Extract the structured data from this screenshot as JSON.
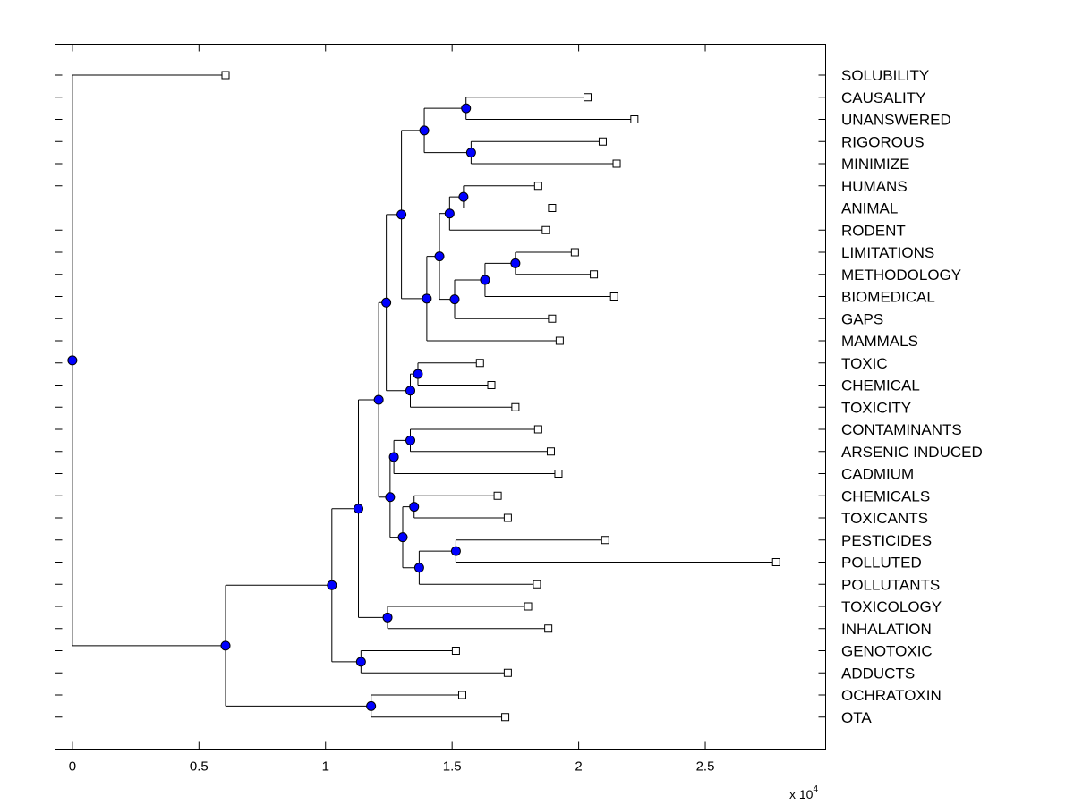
{
  "figure": {
    "type": "dendrogram",
    "x_multiplier": {
      "base": "x 10",
      "exponent": "4"
    },
    "xlim": [
      -0.0685,
      2.9754
    ],
    "x_ticks": [
      {
        "value": 0,
        "label": "0"
      },
      {
        "value": 0.5,
        "label": "0.5"
      },
      {
        "value": 1,
        "label": "1"
      },
      {
        "value": 1.5,
        "label": "1.5"
      },
      {
        "value": 2,
        "label": "2"
      },
      {
        "value": 2.5,
        "label": "2.5"
      }
    ],
    "colors": {
      "node_fill": "#0000ff",
      "line": "#000000",
      "leaf_fill": "#ffffff"
    }
  },
  "chart_data": {
    "type": "dendrogram",
    "title": "",
    "xlabel": "",
    "x_unit_multiplier": "x 10^4",
    "leaves": [
      {
        "name": "SOLUBILITY",
        "x": 0.605
      },
      {
        "name": "CAUSALITY",
        "x": 2.035
      },
      {
        "name": "UNANSWERED",
        "x": 2.22
      },
      {
        "name": "RIGOROUS",
        "x": 2.095
      },
      {
        "name": "MINIMIZE",
        "x": 2.15
      },
      {
        "name": "HUMANS",
        "x": 1.84
      },
      {
        "name": "ANIMAL",
        "x": 1.895
      },
      {
        "name": "RODENT",
        "x": 1.87
      },
      {
        "name": "LIMITATIONS",
        "x": 1.985
      },
      {
        "name": "METHODOLOGY",
        "x": 2.06
      },
      {
        "name": "BIOMEDICAL",
        "x": 2.14
      },
      {
        "name": "GAPS",
        "x": 1.895
      },
      {
        "name": "MAMMALS",
        "x": 1.925
      },
      {
        "name": "TOXIC",
        "x": 1.61
      },
      {
        "name": "CHEMICAL",
        "x": 1.655
      },
      {
        "name": "TOXICITY",
        "x": 1.75
      },
      {
        "name": "CONTAMINANTS",
        "x": 1.84
      },
      {
        "name": "ARSENIC INDUCED",
        "x": 1.89
      },
      {
        "name": "CADMIUM",
        "x": 1.92
      },
      {
        "name": "CHEMICALS",
        "x": 1.68
      },
      {
        "name": "TOXICANTS",
        "x": 1.72
      },
      {
        "name": "PESTICIDES",
        "x": 2.105
      },
      {
        "name": "POLLUTED",
        "x": 2.78
      },
      {
        "name": "POLLUTANTS",
        "x": 1.835
      },
      {
        "name": "TOXICOLOGY",
        "x": 1.8
      },
      {
        "name": "INHALATION",
        "x": 1.88
      },
      {
        "name": "GENOTOXIC",
        "x": 1.515
      },
      {
        "name": "ADDUCTS",
        "x": 1.72
      },
      {
        "name": "OCHRATOXIN",
        "x": 1.54
      },
      {
        "name": "OTA",
        "x": 1.71
      }
    ],
    "tree": {
      "x": 0.0,
      "children": [
        {
          "leaf": "SOLUBILITY"
        },
        {
          "x": 0.605,
          "children": [
            {
              "x": 1.025,
              "children": [
                {
                  "x": 1.13,
                  "children": [
                    {
                      "x": 1.21,
                      "children": [
                        {
                          "x": 1.24,
                          "children": [
                            {
                              "x": 1.3,
                              "children": [
                                {
                                  "x": 1.39,
                                  "children": [
                                    {
                                      "x": 1.555,
                                      "children": [
                                        {
                                          "leaf": "CAUSALITY"
                                        },
                                        {
                                          "leaf": "UNANSWERED"
                                        }
                                      ]
                                    },
                                    {
                                      "x": 1.575,
                                      "children": [
                                        {
                                          "leaf": "RIGOROUS"
                                        },
                                        {
                                          "leaf": "MINIMIZE"
                                        }
                                      ]
                                    }
                                  ]
                                },
                                {
                                  "x": 1.4,
                                  "children": [
                                    {
                                      "x": 1.45,
                                      "children": [
                                        {
                                          "x": 1.49,
                                          "children": [
                                            {
                                              "x": 1.545,
                                              "children": [
                                                {
                                                  "leaf": "HUMANS"
                                                },
                                                {
                                                  "leaf": "ANIMAL"
                                                }
                                              ]
                                            },
                                            {
                                              "leaf": "RODENT"
                                            }
                                          ]
                                        },
                                        {
                                          "x": 1.51,
                                          "children": [
                                            {
                                              "x": 1.63,
                                              "children": [
                                                {
                                                  "x": 1.75,
                                                  "children": [
                                                    {
                                                      "leaf": "LIMITATIONS"
                                                    },
                                                    {
                                                      "leaf": "METHODOLOGY"
                                                    }
                                                  ]
                                                },
                                                {
                                                  "leaf": "BIOMEDICAL"
                                                }
                                              ]
                                            },
                                            {
                                              "leaf": "GAPS"
                                            }
                                          ]
                                        }
                                      ]
                                    },
                                    {
                                      "leaf": "MAMMALS"
                                    }
                                  ]
                                }
                              ]
                            },
                            {
                              "x": 1.335,
                              "children": [
                                {
                                  "x": 1.365,
                                  "children": [
                                    {
                                      "leaf": "TOXIC"
                                    },
                                    {
                                      "leaf": "CHEMICAL"
                                    }
                                  ]
                                },
                                {
                                  "leaf": "TOXICITY"
                                }
                              ]
                            }
                          ]
                        },
                        {
                          "x": 1.255,
                          "children": [
                            {
                              "x": 1.27,
                              "children": [
                                {
                                  "x": 1.335,
                                  "children": [
                                    {
                                      "leaf": "CONTAMINANTS"
                                    },
                                    {
                                      "leaf": "ARSENIC INDUCED"
                                    }
                                  ]
                                },
                                {
                                  "leaf": "CADMIUM"
                                }
                              ]
                            },
                            {
                              "x": 1.305,
                              "children": [
                                {
                                  "x": 1.35,
                                  "children": [
                                    {
                                      "leaf": "CHEMICALS"
                                    },
                                    {
                                      "leaf": "TOXICANTS"
                                    }
                                  ]
                                },
                                {
                                  "x": 1.37,
                                  "children": [
                                    {
                                      "x": 1.515,
                                      "children": [
                                        {
                                          "leaf": "PESTICIDES"
                                        },
                                        {
                                          "leaf": "POLLUTED"
                                        }
                                      ]
                                    },
                                    {
                                      "leaf": "POLLUTANTS"
                                    }
                                  ]
                                }
                              ]
                            }
                          ]
                        }
                      ]
                    },
                    {
                      "x": 1.245,
                      "children": [
                        {
                          "leaf": "TOXICOLOGY"
                        },
                        {
                          "leaf": "INHALATION"
                        }
                      ]
                    }
                  ]
                },
                {
                  "x": 1.14,
                  "children": [
                    {
                      "leaf": "GENOTOXIC"
                    },
                    {
                      "leaf": "ADDUCTS"
                    }
                  ]
                }
              ]
            },
            {
              "x": 1.18,
              "children": [
                {
                  "leaf": "OCHRATOXIN"
                },
                {
                  "leaf": "OTA"
                }
              ]
            }
          ]
        }
      ]
    }
  }
}
